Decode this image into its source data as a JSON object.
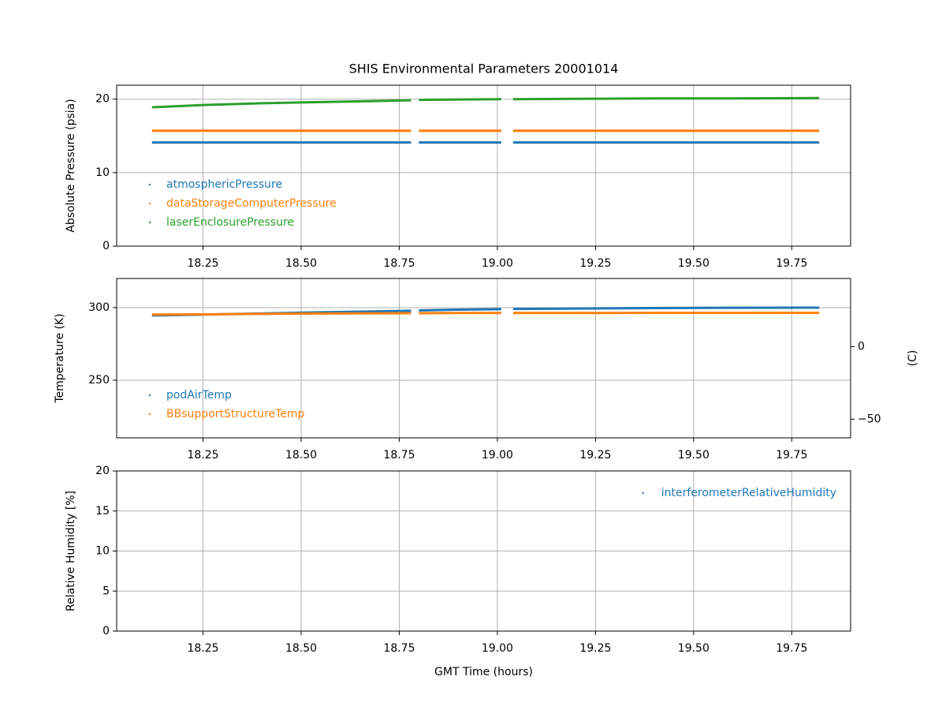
{
  "chart_data": [
    {
      "type": "line",
      "title": "SHIS Environmental Parameters 20001014",
      "ylabel": "Absolute Pressure (psia)",
      "x": [
        18.12,
        18.25,
        18.4,
        18.55,
        18.7,
        18.78,
        18.79,
        18.8,
        18.9,
        19.01,
        19.025,
        19.04,
        19.2,
        19.4,
        19.6,
        19.82
      ],
      "series": [
        {
          "name": "atmosphericPressure",
          "color": "#1f77b4",
          "values": [
            14.1,
            14.1,
            14.1,
            14.1,
            14.1,
            14.1,
            null,
            14.1,
            14.1,
            14.1,
            null,
            14.1,
            14.1,
            14.1,
            14.1,
            14.1
          ]
        },
        {
          "name": "dataStorageComputerPressure",
          "color": "#ff7f0e",
          "values": [
            15.7,
            15.7,
            15.7,
            15.7,
            15.7,
            15.7,
            null,
            15.7,
            15.7,
            15.7,
            null,
            15.7,
            15.7,
            15.7,
            15.7,
            15.7
          ]
        },
        {
          "name": "laserEnclosurePressure",
          "color": "#2ca02c",
          "values": [
            18.9,
            19.2,
            19.45,
            19.6,
            19.75,
            19.85,
            null,
            19.9,
            19.95,
            20.0,
            null,
            20.0,
            20.05,
            20.1,
            20.1,
            20.15
          ]
        }
      ],
      "xlim": [
        18.03,
        19.9
      ],
      "xticks": [
        18.25,
        {
          "value": 18.5,
          "label": "18.50"
        },
        18.75,
        {
          "value": 19,
          "label": "19.00"
        },
        19.25,
        {
          "value": 19.5,
          "label": "19.50"
        },
        19.75
      ],
      "ylim": [
        0,
        21.9
      ],
      "yticks": [
        0,
        10,
        20
      ],
      "grid": true,
      "legend": "lower left"
    },
    {
      "type": "line",
      "ylabel": "Temperature (K)",
      "y2label": "(C)",
      "x": [
        18.12,
        18.25,
        18.4,
        18.55,
        18.7,
        18.78,
        18.79,
        18.8,
        18.9,
        19.01,
        19.025,
        19.04,
        19.2,
        19.4,
        19.6,
        19.82
      ],
      "series": [
        {
          "name": "podAirTemp",
          "color": "#1f77b4",
          "values": [
            294.6,
            295.2,
            296.0,
            296.8,
            297.5,
            297.9,
            null,
            298.1,
            298.6,
            299.0,
            null,
            299.1,
            299.4,
            299.7,
            299.9,
            300.0
          ]
        },
        {
          "name": "BBsupportStructureTemp",
          "color": "#ff7f0e",
          "values": [
            295.2,
            295.4,
            295.7,
            296.0,
            296.1,
            296.2,
            null,
            296.2,
            296.3,
            296.3,
            null,
            296.3,
            296.3,
            296.4,
            296.4,
            296.4
          ]
        }
      ],
      "xlim": [
        18.03,
        19.9
      ],
      "xticks": [
        18.25,
        {
          "value": 18.5,
          "label": "18.50"
        },
        18.75,
        {
          "value": 19,
          "label": "19.00"
        },
        19.25,
        {
          "value": 19.5,
          "label": "19.50"
        },
        19.75
      ],
      "ylim": [
        210.3,
        320.1
      ],
      "yticks": [
        250,
        300
      ],
      "y2lim": [
        -62.85,
        46.95
      ],
      "y2ticks": [
        {
          "value": -50,
          "label": "−50"
        },
        0
      ],
      "grid": true,
      "legend": "lower left"
    },
    {
      "type": "line",
      "ylabel": "Relative Humidity [%]",
      "xlabel": "GMT Time (hours)",
      "x": [],
      "series": [
        {
          "name": "interferometerRelativeHumidity",
          "color": "#1f77b4",
          "values": []
        }
      ],
      "xlim": [
        18.03,
        19.9
      ],
      "xticks": [
        18.25,
        {
          "value": 18.5,
          "label": "18.50"
        },
        18.75,
        {
          "value": 19,
          "label": "19.00"
        },
        19.25,
        {
          "value": 19.5,
          "label": "19.50"
        },
        19.75
      ],
      "ylim": [
        0,
        20
      ],
      "yticks": [
        0,
        5,
        10,
        15,
        20
      ],
      "grid": true,
      "legend": "upper right"
    }
  ]
}
